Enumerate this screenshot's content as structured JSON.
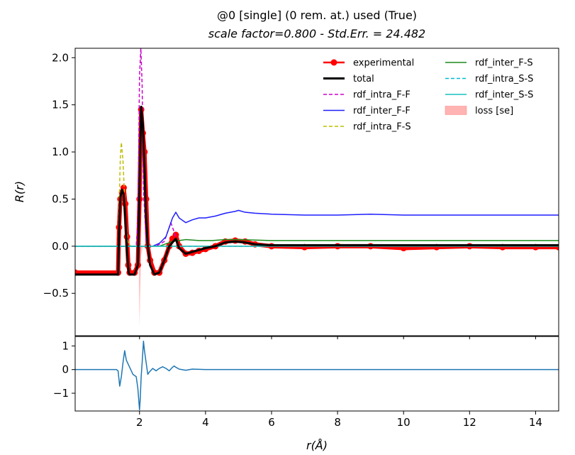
{
  "title_line1": "@0 [single] (0 rem. at.) used (True)",
  "title_line2": "scale factor=0.800 - Std.Err. = 24.482",
  "chart_data": [
    {
      "type": "line",
      "xlabel": "r(Å)",
      "ylabel": "R(r)",
      "xlim": [
        0.05,
        14.7
      ],
      "ylim": [
        -0.95,
        2.1
      ],
      "yticks": [
        -0.5,
        0.0,
        0.5,
        1.0,
        1.5,
        2.0
      ],
      "ytick_labels": [
        "−0.5",
        "0.0",
        "0.5",
        "1.0",
        "1.5",
        "2.0"
      ],
      "grid": false,
      "legend_position": "top-right",
      "legend_columns": 2,
      "legend": [
        {
          "label": "experimental",
          "color": "#ff0000",
          "style": "marker-line"
        },
        {
          "label": "total",
          "color": "#000000",
          "style": "thick-line"
        },
        {
          "label": "rdf_intra_F-F",
          "color": "#cc00cc",
          "style": "dashed"
        },
        {
          "label": "rdf_inter_F-F",
          "color": "#1f1fff",
          "style": "solid"
        },
        {
          "label": "rdf_intra_F-S",
          "color": "#bdbd00",
          "style": "dashed"
        },
        {
          "label": "rdf_inter_F-S",
          "color": "#1a8a1a",
          "style": "solid"
        },
        {
          "label": "rdf_intra_S-S",
          "color": "#00bcd4",
          "style": "dashed"
        },
        {
          "label": "rdf_inter_S-S",
          "color": "#17bfbf",
          "style": "solid"
        },
        {
          "label": "loss [se]",
          "color": "#ffb3b3",
          "style": "fill"
        }
      ],
      "series": [
        {
          "name": "experimental",
          "color": "#ff0000",
          "x": [
            0.05,
            1.35,
            1.38,
            1.42,
            1.47,
            1.52,
            1.57,
            1.62,
            1.66,
            1.7,
            1.85,
            1.95,
            2.0,
            2.05,
            2.1,
            2.15,
            2.2,
            2.25,
            2.32,
            2.45,
            2.6,
            2.75,
            2.9,
            3.0,
            3.1,
            3.2,
            3.4,
            3.6,
            3.8,
            4.0,
            4.3,
            4.6,
            4.9,
            5.2,
            5.5,
            6.0,
            7.0,
            8.0,
            9.0,
            10.0,
            11.0,
            12.0,
            13.0,
            14.0,
            14.7
          ],
          "y": [
            -0.28,
            -0.28,
            0.2,
            0.5,
            0.57,
            0.62,
            0.45,
            0.1,
            -0.2,
            -0.28,
            -0.28,
            -0.2,
            0.5,
            1.45,
            1.2,
            1.0,
            0.5,
            0.0,
            -0.15,
            -0.28,
            -0.28,
            -0.15,
            0.0,
            0.08,
            0.12,
            0.0,
            -0.08,
            -0.07,
            -0.05,
            -0.03,
            0.0,
            0.05,
            0.06,
            0.05,
            0.02,
            0.0,
            -0.01,
            0.0,
            0.0,
            -0.02,
            -0.01,
            0.0,
            -0.01,
            -0.01,
            -0.01
          ]
        },
        {
          "name": "total",
          "color": "#000000",
          "x": [
            0.05,
            1.35,
            1.38,
            1.42,
            1.47,
            1.52,
            1.57,
            1.62,
            1.67,
            1.7,
            1.85,
            1.95,
            2.0,
            2.05,
            2.1,
            2.15,
            2.2,
            2.25,
            2.32,
            2.45,
            2.6,
            2.75,
            2.9,
            3.0,
            3.1,
            3.2,
            3.4,
            3.6,
            3.8,
            4.0,
            4.3,
            4.6,
            4.9,
            5.2,
            5.5,
            6.0,
            7.0,
            8.0,
            9.0,
            10.0,
            11.0,
            12.0,
            13.0,
            14.0,
            14.7
          ],
          "y": [
            -0.3,
            -0.3,
            0.15,
            0.52,
            0.6,
            0.55,
            0.3,
            -0.05,
            -0.28,
            -0.3,
            -0.3,
            -0.2,
            0.6,
            1.48,
            1.3,
            0.85,
            0.3,
            0.0,
            -0.2,
            -0.3,
            -0.28,
            -0.15,
            0.0,
            0.04,
            0.08,
            -0.02,
            -0.08,
            -0.06,
            -0.04,
            -0.02,
            0.0,
            0.04,
            0.05,
            0.04,
            0.02,
            0.01,
            0.01,
            0.01,
            0.01,
            0.01,
            0.01,
            0.01,
            0.01,
            0.01,
            0.01
          ]
        },
        {
          "name": "rdf_intra_F-F",
          "color": "#cc00cc",
          "dash": true,
          "x": [
            0.05,
            1.9,
            1.95,
            2.0,
            2.04,
            2.08,
            2.12,
            2.2,
            2.3,
            2.5,
            2.75,
            2.85,
            2.95,
            3.05,
            3.2,
            14.7
          ],
          "y": [
            0.0,
            0.0,
            0.3,
            1.8,
            2.1,
            1.7,
            0.6,
            0.05,
            0.0,
            0.0,
            0.05,
            0.15,
            0.25,
            0.15,
            0.0,
            0.0
          ]
        },
        {
          "name": "rdf_inter_F-F",
          "color": "#1f1fff",
          "x": [
            0.05,
            2.4,
            2.6,
            2.8,
            2.9,
            3.0,
            3.1,
            3.2,
            3.4,
            3.6,
            3.8,
            4.0,
            4.3,
            4.6,
            4.9,
            5.0,
            5.2,
            5.5,
            6.0,
            7.0,
            8.0,
            9.0,
            10.0,
            11.0,
            12.0,
            13.0,
            14.0,
            14.7
          ],
          "y": [
            0.0,
            0.0,
            0.03,
            0.1,
            0.2,
            0.3,
            0.36,
            0.3,
            0.25,
            0.28,
            0.3,
            0.3,
            0.32,
            0.35,
            0.37,
            0.38,
            0.36,
            0.35,
            0.34,
            0.33,
            0.33,
            0.34,
            0.33,
            0.33,
            0.33,
            0.33,
            0.33,
            0.33
          ]
        },
        {
          "name": "rdf_intra_F-S",
          "color": "#bdbd00",
          "dash": true,
          "x": [
            0.05,
            1.35,
            1.38,
            1.42,
            1.45,
            1.5,
            1.55,
            1.6,
            1.65,
            1.72,
            14.7
          ],
          "y": [
            0.0,
            0.0,
            0.4,
            0.95,
            1.1,
            0.9,
            0.5,
            0.2,
            0.05,
            0.0,
            0.0
          ]
        },
        {
          "name": "rdf_inter_F-S",
          "color": "#1a8a1a",
          "x": [
            0.05,
            2.6,
            3.0,
            3.4,
            3.8,
            4.2,
            4.6,
            5.0,
            6.0,
            7.0,
            8.0,
            10.0,
            12.0,
            14.7
          ],
          "y": [
            0.0,
            0.0,
            0.05,
            0.07,
            0.06,
            0.06,
            0.07,
            0.07,
            0.06,
            0.06,
            0.06,
            0.06,
            0.06,
            0.06
          ]
        },
        {
          "name": "rdf_intra_S-S",
          "color": "#00bcd4",
          "dash": true,
          "x": [
            0.05,
            14.7
          ],
          "y": [
            0.0,
            0.0
          ]
        },
        {
          "name": "rdf_inter_S-S",
          "color": "#17bfbf",
          "x": [
            0.05,
            14.7
          ],
          "y": [
            0.0,
            0.0
          ]
        },
        {
          "name": "loss [se]",
          "color": "#ffb3b3",
          "fill": true,
          "x": [
            0.05,
            1.95,
            1.98,
            2.0,
            2.02,
            2.05,
            2.1,
            14.7
          ],
          "y": [
            0.0,
            0.0,
            -0.3,
            -0.85,
            -0.5,
            -0.1,
            0.0,
            0.0
          ]
        }
      ]
    },
    {
      "type": "line",
      "xlabel": "r(Å)",
      "ylabel": "",
      "xlim": [
        0.05,
        14.7
      ],
      "ylim": [
        -1.75,
        1.4
      ],
      "xticks": [
        2,
        4,
        6,
        8,
        10,
        12,
        14
      ],
      "xtick_labels": [
        "2",
        "4",
        "6",
        "8",
        "10",
        "12",
        "14"
      ],
      "yticks": [
        -1,
        0,
        1
      ],
      "ytick_labels": [
        "−1",
        "0",
        "1"
      ],
      "grid": false,
      "series": [
        {
          "name": "residual",
          "color": "#1f77b4",
          "x": [
            0.05,
            1.3,
            1.35,
            1.4,
            1.45,
            1.5,
            1.55,
            1.6,
            1.7,
            1.8,
            1.9,
            1.95,
            2.0,
            2.02,
            2.05,
            2.08,
            2.12,
            2.15,
            2.2,
            2.25,
            2.3,
            2.4,
            2.5,
            2.6,
            2.7,
            2.8,
            2.9,
            3.0,
            3.05,
            3.1,
            3.2,
            3.4,
            3.6,
            4.0,
            5.0,
            6.0,
            8.0,
            10.0,
            12.0,
            14.7
          ],
          "y": [
            0.0,
            0.0,
            -0.05,
            -0.7,
            -0.3,
            0.3,
            0.8,
            0.4,
            0.1,
            -0.2,
            -0.3,
            -0.8,
            -1.7,
            -1.3,
            -0.3,
            0.3,
            1.2,
            0.8,
            0.3,
            -0.2,
            -0.1,
            0.05,
            -0.05,
            0.05,
            0.12,
            0.05,
            -0.05,
            0.1,
            0.15,
            0.1,
            0.02,
            -0.03,
            0.02,
            0.0,
            0.0,
            0.0,
            0.0,
            0.0,
            0.0,
            0.0
          ]
        }
      ]
    }
  ]
}
